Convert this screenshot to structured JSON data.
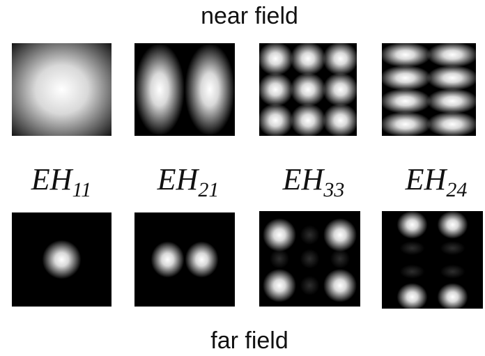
{
  "header": {
    "title": "near field"
  },
  "modes": [
    {
      "name": "EH",
      "sub": "11"
    },
    {
      "name": "EH",
      "sub": "21"
    },
    {
      "name": "EH",
      "sub": "33"
    },
    {
      "name": "EH",
      "sub": "24"
    }
  ],
  "footer": {
    "title": "far field"
  }
}
